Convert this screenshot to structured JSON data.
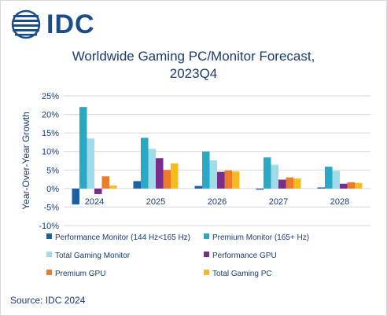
{
  "logo": {
    "text": "IDC",
    "color": "#1b4d89"
  },
  "source": "Source: IDC 2024",
  "chart_data": {
    "type": "bar",
    "title": "Worldwide Gaming PC/Monitor Forecast, 2023Q4",
    "title_lines": [
      "Worldwide Gaming PC/Monitor Forecast,",
      "2023Q4"
    ],
    "xlabel": "",
    "ylabel": "Year-Over-Year Growth",
    "ylim": [
      -10,
      25
    ],
    "yticks": [
      -10,
      -5,
      0,
      5,
      10,
      15,
      20,
      25
    ],
    "ytick_labels": [
      "-10%",
      "-5%",
      "0%",
      "5%",
      "10%",
      "15%",
      "20%",
      "25%"
    ],
    "grid": true,
    "legend_position": "bottom",
    "categories": [
      "2024",
      "2025",
      "2026",
      "2027",
      "2028"
    ],
    "series": [
      {
        "name": "Performance Monitor (144 Hz<165 Hz)",
        "color": "#1f5fa5",
        "values": [
          -4.3,
          2.0,
          0.7,
          -0.3,
          0.3
        ]
      },
      {
        "name": "Premium Monitor (165+ Hz)",
        "color": "#2aa9c6",
        "values": [
          22.0,
          13.7,
          10.0,
          8.4,
          5.9
        ]
      },
      {
        "name": "Total Gaming Monitor",
        "color": "#9fdbe8",
        "values": [
          13.5,
          10.7,
          7.6,
          6.4,
          4.8
        ]
      },
      {
        "name": "Performance GPU",
        "color": "#7b2d8e",
        "values": [
          -1.5,
          8.2,
          4.5,
          2.4,
          1.3
        ]
      },
      {
        "name": "Premium GPU",
        "color": "#ec7b2c",
        "values": [
          3.3,
          5.0,
          4.9,
          3.0,
          1.7
        ]
      },
      {
        "name": "Total Gaming PC",
        "color": "#f7bb20",
        "values": [
          0.8,
          6.8,
          4.6,
          2.7,
          1.5
        ]
      }
    ]
  }
}
